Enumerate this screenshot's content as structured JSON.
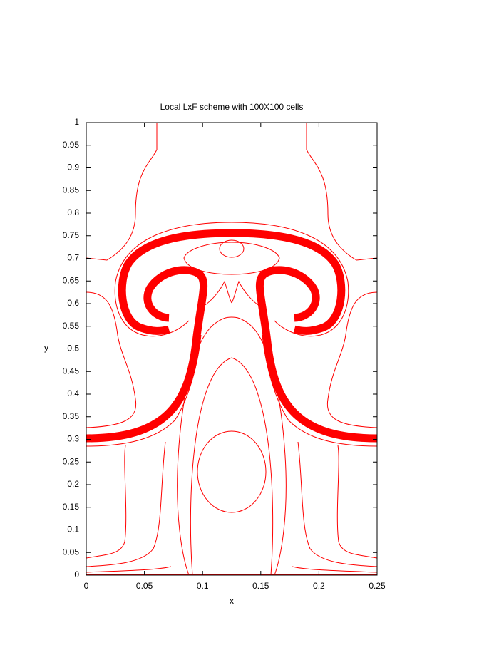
{
  "chart_data": {
    "type": "contour",
    "title": "Local LxF scheme with 100X100 cells",
    "x_label": "x",
    "y_label": "y",
    "color": "#ff0000",
    "xlim": [
      0,
      0.25
    ],
    "ylim": [
      0,
      1
    ],
    "xticks": [
      0,
      0.05,
      0.1,
      0.15,
      0.2,
      0.25
    ],
    "yticks": [
      0,
      0.05,
      0.1,
      0.15,
      0.2,
      0.25,
      0.3,
      0.35,
      0.4,
      0.45,
      0.5,
      0.55,
      0.6,
      0.65,
      0.7,
      0.75,
      0.8,
      0.85,
      0.9,
      0.95,
      1
    ]
  }
}
